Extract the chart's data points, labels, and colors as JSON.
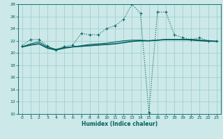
{
  "xlabel": "Humidex (Indice chaleur)",
  "bg_color": "#cce8e8",
  "grid_color": "#99cccc",
  "line_color": "#005f5f",
  "xmin": -0.5,
  "xmax": 23.5,
  "ymin": 10,
  "ymax": 28,
  "yticks": [
    10,
    12,
    14,
    16,
    18,
    20,
    22,
    24,
    26,
    28
  ],
  "xticks": [
    0,
    1,
    2,
    3,
    4,
    5,
    6,
    7,
    8,
    9,
    10,
    11,
    12,
    13,
    14,
    15,
    16,
    17,
    18,
    19,
    20,
    21,
    22,
    23
  ],
  "series1_x": [
    0,
    1,
    2,
    3,
    4,
    5,
    6,
    7,
    8,
    9,
    10,
    11,
    12,
    13,
    14,
    15,
    16,
    17,
    18,
    19,
    20,
    21,
    22,
    23
  ],
  "series1_y": [
    21.2,
    22.2,
    22.2,
    21.2,
    20.5,
    21.1,
    21.3,
    23.2,
    23.0,
    23.0,
    24.0,
    24.5,
    25.5,
    28.0,
    26.5,
    10.2,
    26.7,
    26.7,
    23.0,
    22.5,
    22.2,
    22.5,
    22.0,
    22.0
  ],
  "series2_x": [
    0,
    1,
    2,
    3,
    4,
    5,
    6,
    7,
    8,
    9,
    10,
    11,
    12,
    13,
    14,
    15,
    16,
    17,
    18,
    19,
    20,
    21,
    22,
    23
  ],
  "series2_y": [
    21.0,
    21.3,
    21.5,
    20.8,
    20.5,
    20.8,
    21.0,
    21.1,
    21.2,
    21.3,
    21.4,
    21.5,
    21.7,
    21.9,
    22.0,
    22.0,
    22.1,
    22.2,
    22.2,
    22.2,
    22.2,
    22.1,
    22.0,
    21.9
  ],
  "series3_x": [
    0,
    1,
    2,
    3,
    4,
    5,
    6,
    7,
    8,
    9,
    10,
    11,
    12,
    13,
    14,
    15,
    16,
    17,
    18,
    19,
    20,
    21,
    22,
    23
  ],
  "series3_y": [
    21.0,
    21.5,
    21.8,
    21.0,
    20.6,
    20.9,
    21.0,
    21.2,
    21.4,
    21.5,
    21.6,
    21.8,
    22.0,
    22.1,
    22.1,
    22.0,
    22.1,
    22.2,
    22.2,
    22.2,
    22.1,
    22.0,
    21.9,
    21.9
  ]
}
